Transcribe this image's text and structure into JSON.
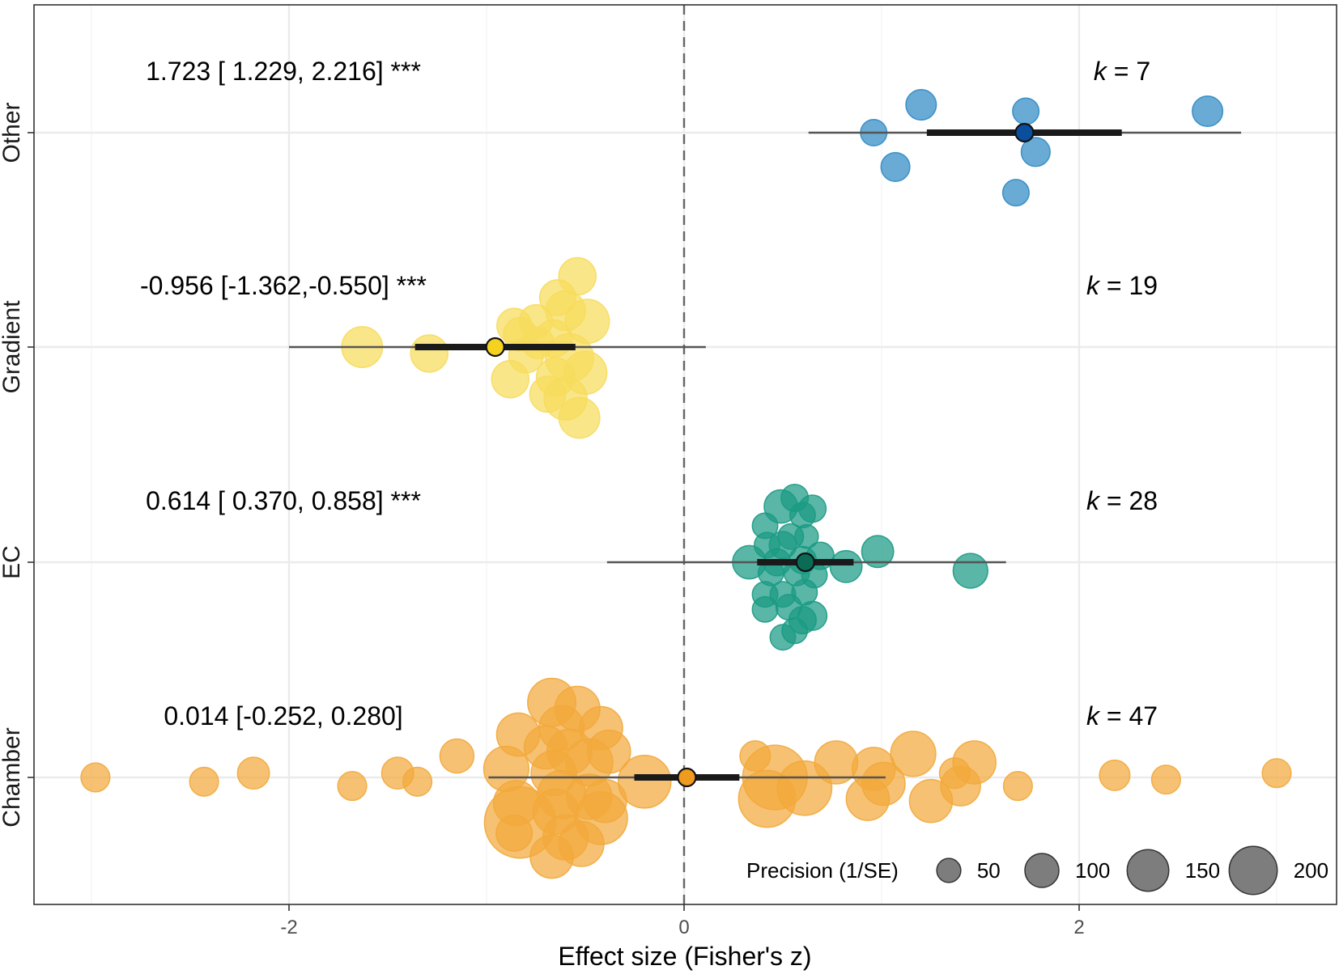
{
  "chart_data": {
    "type": "scatter",
    "subtype": "orchard_plot",
    "title": "",
    "xlabel": "Effect size (Fisher's z)",
    "ylabel": "",
    "xlim": [
      -3.1,
      3.3
    ],
    "xticks": [
      -2,
      0,
      2
    ],
    "xtick_labels": [
      "-2",
      "0",
      "2"
    ],
    "xgrid_minor": [
      -3,
      -1,
      1,
      3
    ],
    "reference_line": 0,
    "groups": [
      {
        "name": "Other",
        "color": "#2f8ac4",
        "estimate_fill": "#0a4f9c",
        "estimate": 1.723,
        "ci": [
          1.229,
          2.216
        ],
        "pi": [
          0.63,
          2.82
        ],
        "annotation": "1.723 [ 1.229, 2.216]  ***",
        "k_label": "k",
        "k_value": "= 7",
        "points": [
          {
            "x": 1.2,
            "dy": 0.13,
            "p": 20
          },
          {
            "x": 1.73,
            "dy": 0.1,
            "p": 15
          },
          {
            "x": 2.65,
            "dy": 0.1,
            "p": 20
          },
          {
            "x": 0.96,
            "dy": 0.0,
            "p": 15
          },
          {
            "x": 1.78,
            "dy": -0.09,
            "p": 18
          },
          {
            "x": 1.07,
            "dy": -0.16,
            "p": 18
          },
          {
            "x": 1.68,
            "dy": -0.28,
            "p": 15
          }
        ]
      },
      {
        "name": "Gradient",
        "color": "#f7dc5c",
        "estimate_fill": "#f5d21e",
        "estimate": -0.956,
        "ci": [
          -1.362,
          -0.55
        ],
        "pi": [
          -2.0,
          0.11
        ],
        "annotation": "-0.956 [-1.362,-0.550]  ***",
        "k_label": "k",
        "k_value": "= 19",
        "points": [
          {
            "x": -0.54,
            "dy": 0.33,
            "p": 30
          },
          {
            "x": -0.64,
            "dy": 0.23,
            "p": 28
          },
          {
            "x": -0.6,
            "dy": 0.17,
            "p": 34
          },
          {
            "x": -0.75,
            "dy": 0.12,
            "p": 24
          },
          {
            "x": -0.86,
            "dy": 0.1,
            "p": 26
          },
          {
            "x": -0.49,
            "dy": 0.12,
            "p": 42
          },
          {
            "x": -0.66,
            "dy": 0.04,
            "p": 30
          },
          {
            "x": -0.83,
            "dy": 0.06,
            "p": 24
          },
          {
            "x": -1.63,
            "dy": 0.0,
            "p": 36
          },
          {
            "x": -1.29,
            "dy": -0.03,
            "p": 30
          },
          {
            "x": -0.8,
            "dy": -0.04,
            "p": 26
          },
          {
            "x": -0.58,
            "dy": -0.05,
            "p": 50
          },
          {
            "x": -0.5,
            "dy": -0.12,
            "p": 40
          },
          {
            "x": -0.65,
            "dy": -0.14,
            "p": 32
          },
          {
            "x": -0.88,
            "dy": -0.15,
            "p": 30
          },
          {
            "x": -0.69,
            "dy": -0.22,
            "p": 28
          },
          {
            "x": -0.6,
            "dy": -0.24,
            "p": 40
          },
          {
            "x": -0.53,
            "dy": -0.33,
            "p": 36
          },
          {
            "x": -0.74,
            "dy": 0.02,
            "p": 22
          }
        ]
      },
      {
        "name": "EC",
        "color": "#1a9a84",
        "estimate_fill": "#0b6b55",
        "estimate": 0.614,
        "ci": [
          0.37,
          0.858
        ],
        "pi": [
          -0.39,
          1.63
        ],
        "annotation": "0.614 [ 0.370, 0.858]  ***",
        "k_label": "k",
        "k_value": "= 28",
        "points": [
          {
            "x": 0.56,
            "dy": 0.3,
            "p": 16
          },
          {
            "x": 0.49,
            "dy": 0.26,
            "p": 24
          },
          {
            "x": 0.65,
            "dy": 0.25,
            "p": 16
          },
          {
            "x": 0.6,
            "dy": 0.22,
            "p": 14
          },
          {
            "x": 0.41,
            "dy": 0.17,
            "p": 14
          },
          {
            "x": 0.54,
            "dy": 0.12,
            "p": 14
          },
          {
            "x": 0.62,
            "dy": 0.12,
            "p": 12
          },
          {
            "x": 0.42,
            "dy": 0.08,
            "p": 14
          },
          {
            "x": 0.5,
            "dy": 0.08,
            "p": 16
          },
          {
            "x": 0.69,
            "dy": 0.03,
            "p": 16
          },
          {
            "x": 0.98,
            "dy": 0.05,
            "p": 22
          },
          {
            "x": 0.33,
            "dy": 0.0,
            "p": 24
          },
          {
            "x": 0.47,
            "dy": 0.0,
            "p": 16
          },
          {
            "x": 0.6,
            "dy": 0.01,
            "p": 16
          },
          {
            "x": 0.44,
            "dy": -0.05,
            "p": 14
          },
          {
            "x": 0.57,
            "dy": -0.05,
            "p": 14
          },
          {
            "x": 0.66,
            "dy": -0.06,
            "p": 14
          },
          {
            "x": 0.82,
            "dy": -0.02,
            "p": 22
          },
          {
            "x": 1.45,
            "dy": -0.04,
            "p": 26
          },
          {
            "x": 0.41,
            "dy": -0.15,
            "p": 14
          },
          {
            "x": 0.5,
            "dy": -0.15,
            "p": 14
          },
          {
            "x": 0.61,
            "dy": -0.14,
            "p": 14
          },
          {
            "x": 0.41,
            "dy": -0.22,
            "p": 14
          },
          {
            "x": 0.53,
            "dy": -0.21,
            "p": 14
          },
          {
            "x": 0.65,
            "dy": -0.25,
            "p": 18
          },
          {
            "x": 0.6,
            "dy": -0.27,
            "p": 16
          },
          {
            "x": 0.56,
            "dy": -0.32,
            "p": 14
          },
          {
            "x": 0.5,
            "dy": -0.35,
            "p": 14
          }
        ]
      },
      {
        "name": "Chamber",
        "color": "#f2a93b",
        "estimate_fill": "#ef9b1f",
        "estimate": 0.014,
        "ci": [
          -0.252,
          0.28
        ],
        "pi": [
          -0.99,
          1.02
        ],
        "annotation": "0.014 [-0.252, 0.280]",
        "k_label": "k",
        "k_value": "= 47",
        "points": [
          {
            "x": -0.67,
            "dy": 0.35,
            "p": 50
          },
          {
            "x": -0.54,
            "dy": 0.32,
            "p": 44
          },
          {
            "x": -0.62,
            "dy": 0.23,
            "p": 44
          },
          {
            "x": -0.42,
            "dy": 0.23,
            "p": 40
          },
          {
            "x": -0.84,
            "dy": 0.2,
            "p": 40
          },
          {
            "x": -0.7,
            "dy": 0.14,
            "p": 40
          },
          {
            "x": -0.58,
            "dy": 0.12,
            "p": 44
          },
          {
            "x": -0.38,
            "dy": 0.12,
            "p": 40
          },
          {
            "x": -0.48,
            "dy": 0.07,
            "p": 48
          },
          {
            "x": -0.9,
            "dy": 0.04,
            "p": 44
          },
          {
            "x": -0.66,
            "dy": 0.02,
            "p": 44
          },
          {
            "x": -1.15,
            "dy": 0.1,
            "p": 25
          },
          {
            "x": -2.18,
            "dy": 0.02,
            "p": 22
          },
          {
            "x": -2.43,
            "dy": -0.02,
            "p": 18
          },
          {
            "x": -2.98,
            "dy": 0.0,
            "p": 18
          },
          {
            "x": -1.45,
            "dy": 0.02,
            "p": 22
          },
          {
            "x": -1.35,
            "dy": -0.02,
            "p": 18
          },
          {
            "x": -1.68,
            "dy": -0.04,
            "p": 18
          },
          {
            "x": 0.36,
            "dy": 0.1,
            "p": 20
          },
          {
            "x": 0.46,
            "dy": 0.0,
            "p": 90
          },
          {
            "x": 0.42,
            "dy": -0.1,
            "p": 70
          },
          {
            "x": 0.61,
            "dy": -0.05,
            "p": 64
          },
          {
            "x": 0.77,
            "dy": 0.07,
            "p": 40
          },
          {
            "x": 0.96,
            "dy": 0.04,
            "p": 40
          },
          {
            "x": 1.01,
            "dy": -0.03,
            "p": 40
          },
          {
            "x": 0.93,
            "dy": -0.1,
            "p": 40
          },
          {
            "x": 1.16,
            "dy": 0.11,
            "p": 44
          },
          {
            "x": 1.25,
            "dy": -0.11,
            "p": 40
          },
          {
            "x": 1.47,
            "dy": 0.07,
            "p": 40
          },
          {
            "x": 1.4,
            "dy": -0.04,
            "p": 34
          },
          {
            "x": 1.37,
            "dy": 0.02,
            "p": 20
          },
          {
            "x": 1.69,
            "dy": -0.04,
            "p": 18
          },
          {
            "x": 2.18,
            "dy": 0.01,
            "p": 20
          },
          {
            "x": 2.44,
            "dy": -0.01,
            "p": 18
          },
          {
            "x": 3.0,
            "dy": 0.02,
            "p": 18
          },
          {
            "x": -0.62,
            "dy": -0.08,
            "p": 50
          },
          {
            "x": -0.48,
            "dy": -0.09,
            "p": 44
          },
          {
            "x": -0.4,
            "dy": -0.11,
            "p": 40
          },
          {
            "x": -0.85,
            "dy": -0.12,
            "p": 44
          },
          {
            "x": -0.65,
            "dy": -0.16,
            "p": 44
          },
          {
            "x": -0.42,
            "dy": -0.19,
            "p": 60
          },
          {
            "x": -0.83,
            "dy": -0.21,
            "p": 110
          },
          {
            "x": -0.86,
            "dy": -0.26,
            "p": 28
          },
          {
            "x": -0.6,
            "dy": -0.28,
            "p": 44
          },
          {
            "x": -0.52,
            "dy": -0.31,
            "p": 44
          },
          {
            "x": -0.67,
            "dy": -0.37,
            "p": 40
          },
          {
            "x": -0.2,
            "dy": -0.02,
            "p": 60
          }
        ]
      }
    ],
    "legend": {
      "title": "Precision (1/SE)",
      "position": "bottom-right",
      "values": [
        50,
        100,
        150,
        200
      ],
      "labels": [
        "50",
        "100",
        "150",
        "200"
      ]
    }
  }
}
